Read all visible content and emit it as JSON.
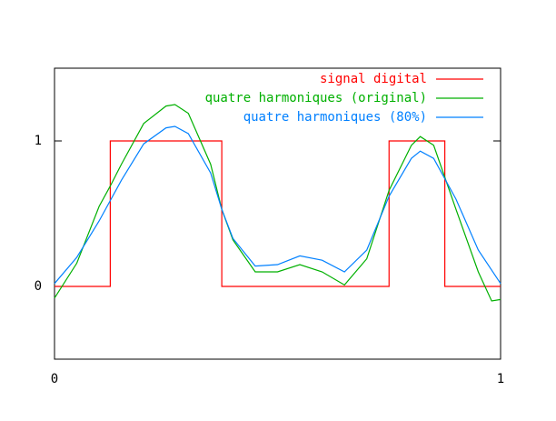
{
  "chart_data": {
    "type": "line",
    "xlim": [
      0,
      1
    ],
    "ylim": [
      -0.5,
      1.5
    ],
    "xticks": [
      0,
      1
    ],
    "yticks": [
      0,
      1
    ],
    "legend": "top-right",
    "series": [
      {
        "name": "signal digital",
        "color": "#ff0000",
        "x": [
          0,
          0.125,
          0.125,
          0.375,
          0.375,
          0.75,
          0.75,
          0.875,
          0.875,
          1
        ],
        "values": [
          0,
          0,
          1,
          1,
          0,
          0,
          1,
          1,
          0,
          0
        ]
      },
      {
        "name": "quatre harmoniques (original)",
        "color": "#00b000",
        "x": [
          0,
          0.05,
          0.1,
          0.125,
          0.15,
          0.2,
          0.25,
          0.27,
          0.3,
          0.35,
          0.375,
          0.4,
          0.45,
          0.5,
          0.55,
          0.6,
          0.65,
          0.7,
          0.75,
          0.8,
          0.82,
          0.85,
          0.9,
          0.95,
          0.98,
          1
        ],
        "values": [
          -0.08,
          0.16,
          0.55,
          0.69,
          0.84,
          1.12,
          1.24,
          1.25,
          1.19,
          0.84,
          0.53,
          0.32,
          0.1,
          0.1,
          0.15,
          0.1,
          0.01,
          0.19,
          0.66,
          0.97,
          1.03,
          0.97,
          0.53,
          0.1,
          -0.1,
          -0.09
        ]
      },
      {
        "name": "quatre harmoniques (80%)",
        "color": "#0080ff",
        "x": [
          0,
          0.05,
          0.1,
          0.15,
          0.2,
          0.25,
          0.27,
          0.3,
          0.35,
          0.375,
          0.4,
          0.45,
          0.5,
          0.55,
          0.6,
          0.65,
          0.7,
          0.75,
          0.8,
          0.82,
          0.85,
          0.9,
          0.95,
          1
        ],
        "values": [
          0.02,
          0.2,
          0.45,
          0.73,
          0.98,
          1.09,
          1.1,
          1.05,
          0.78,
          0.53,
          0.33,
          0.14,
          0.15,
          0.21,
          0.18,
          0.1,
          0.25,
          0.62,
          0.88,
          0.93,
          0.88,
          0.6,
          0.25,
          0.02
        ]
      }
    ]
  }
}
